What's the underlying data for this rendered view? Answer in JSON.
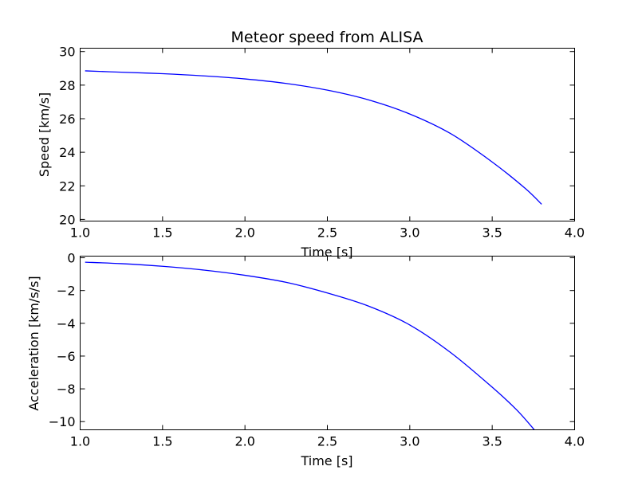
{
  "chart_data": [
    {
      "type": "line",
      "title": "Meteor speed from  ALISA",
      "xlabel": "Time [s]",
      "ylabel": "Speed [km/s]",
      "xlim": [
        1.0,
        4.0
      ],
      "ylim": [
        19.9,
        30.2
      ],
      "xticks": [
        1.0,
        1.5,
        2.0,
        2.5,
        3.0,
        3.5,
        4.0
      ],
      "xtick_labels": [
        "1.0",
        "1.5",
        "2.0",
        "2.5",
        "3.0",
        "3.5",
        "4.0"
      ],
      "yticks": [
        20,
        22,
        24,
        26,
        28,
        30
      ],
      "ytick_labels": [
        "20",
        "22",
        "24",
        "26",
        "28",
        "30"
      ],
      "grid": false,
      "series": [
        {
          "color": "#0000ff",
          "x": [
            1.03,
            1.25,
            1.5,
            1.75,
            2.0,
            2.25,
            2.5,
            2.75,
            3.0,
            3.25,
            3.5,
            3.7,
            3.8
          ],
          "y": [
            28.85,
            28.77,
            28.68,
            28.55,
            28.37,
            28.1,
            27.7,
            27.12,
            26.28,
            25.1,
            23.42,
            21.85,
            20.9
          ]
        }
      ]
    },
    {
      "type": "line",
      "title": "",
      "xlabel": "Time [s]",
      "ylabel": "Acceleration [km/s/s]",
      "xlim": [
        1.0,
        4.0
      ],
      "ylim": [
        -10.5,
        0.1
      ],
      "xticks": [
        1.0,
        1.5,
        2.0,
        2.5,
        3.0,
        3.5,
        4.0
      ],
      "xtick_labels": [
        "1.0",
        "1.5",
        "2.0",
        "2.5",
        "3.0",
        "3.5",
        "4.0"
      ],
      "yticks": [
        0,
        -2,
        -4,
        -6,
        -8,
        -10
      ],
      "ytick_labels": [
        "0",
        "−2",
        "−4",
        "−6",
        "−8",
        "−10"
      ],
      "grid": false,
      "series": [
        {
          "color": "#0000ff",
          "x": [
            1.03,
            1.25,
            1.5,
            1.75,
            2.0,
            2.25,
            2.5,
            2.75,
            3.0,
            3.25,
            3.5,
            3.65,
            3.76
          ],
          "y": [
            -0.27,
            -0.36,
            -0.52,
            -0.75,
            -1.07,
            -1.5,
            -2.15,
            -2.95,
            -4.1,
            -5.8,
            -7.9,
            -9.3,
            -10.55
          ]
        }
      ]
    }
  ]
}
